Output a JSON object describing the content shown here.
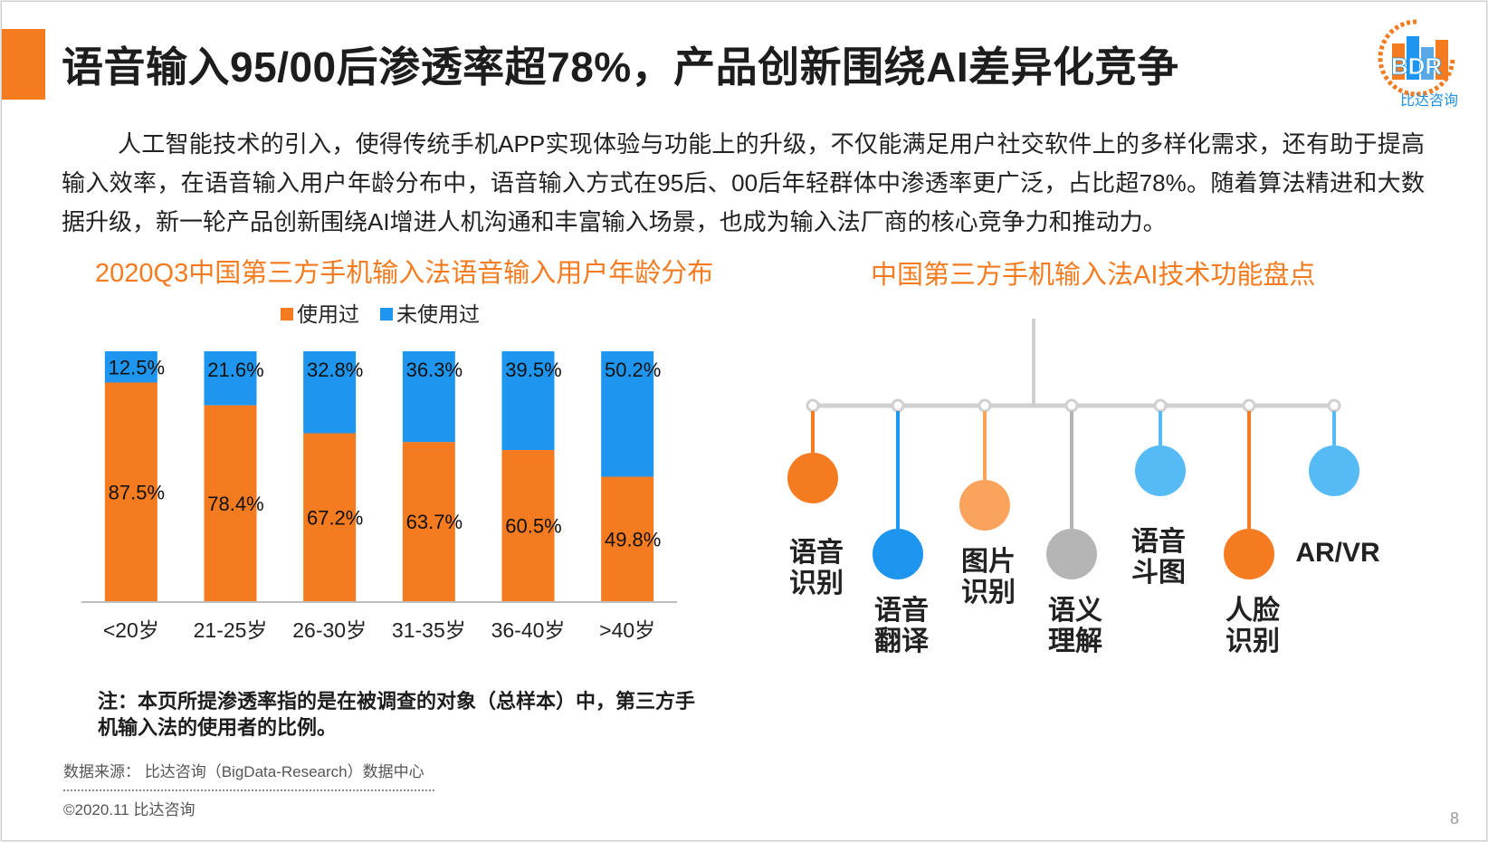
{
  "page": {
    "title": "语音输入95/00后渗透率超78%，产品创新围绕AI差异化竞争",
    "intro": "人工智能技术的引入，使得传统手机APP实现体验与功能上的升级，不仅能满足用户社交软件上的多样化需求，还有助于提高输入效率，在语音输入用户年龄分布中，语音输入方式在95后、00后年轻群体中渗透率更广泛，占比超78%。随着算法精进和大数据升级，新一轮产品创新围绕AI增进人机沟通和丰富输入场景，也成为输入法厂商的核心竞争力和推动力。",
    "note": "注：本页所提渗透率指的是在被调查的对象（总样本）中，第三方手机输入法的使用者的比例。",
    "source": "数据来源： 比达咨询（BigData-Research）数据中心",
    "copyright": "©2020.11   比达咨询",
    "page_number": "8"
  },
  "logo": {
    "mark": "BDR",
    "name": "比达咨询"
  },
  "chart_data": {
    "type": "bar",
    "stacked": true,
    "title": "2020Q3中国第三方手机输入法语音输入用户年龄分布",
    "categories": [
      "<20岁",
      "21-25岁",
      "26-30岁",
      "31-35岁",
      "36-40岁",
      ">40岁"
    ],
    "series": [
      {
        "name": "使用过",
        "color": "#f47b20",
        "values": [
          87.5,
          78.4,
          67.2,
          63.7,
          60.5,
          49.8
        ],
        "labels": [
          "87.5%",
          "78.4%",
          "67.2%",
          "63.7%",
          "60.5%",
          "49.8%"
        ]
      },
      {
        "name": "未使用过",
        "color": "#1e96f0",
        "values": [
          12.5,
          21.6,
          32.8,
          36.3,
          39.5,
          50.2
        ],
        "labels": [
          "12.5%",
          "21.6%",
          "32.8%",
          "36.3%",
          "39.5%",
          "50.2%"
        ]
      }
    ],
    "ylim": [
      0,
      100
    ],
    "legend": "top"
  },
  "ai_features": {
    "title": "中国第三方手机输入法AI技术功能盘点",
    "items": [
      {
        "name": "语音识别",
        "lines": [
          "语音",
          "识别"
        ],
        "color": "#f47b20",
        "pos": "low"
      },
      {
        "name": "语音翻译",
        "lines": [
          "语音",
          "翻译"
        ],
        "color": "#1e96f0",
        "pos": "deep"
      },
      {
        "name": "图片识别",
        "lines": [
          "图片",
          "识别"
        ],
        "color": "#f9a35d",
        "pos": "mid"
      },
      {
        "name": "语义理解",
        "lines": [
          "语义",
          "理解"
        ],
        "color": "#b5b5b5",
        "pos": "deep"
      },
      {
        "name": "语音斗图",
        "lines": [
          "语音",
          "斗图"
        ],
        "color": "#56baf5",
        "pos": "high"
      },
      {
        "name": "人脸识别",
        "lines": [
          "人脸",
          "识别"
        ],
        "color": "#f47b20",
        "pos": "deep"
      },
      {
        "name": "AR/VR",
        "lines": [
          "AR/VR"
        ],
        "color": "#56baf5",
        "pos": "high"
      }
    ]
  }
}
